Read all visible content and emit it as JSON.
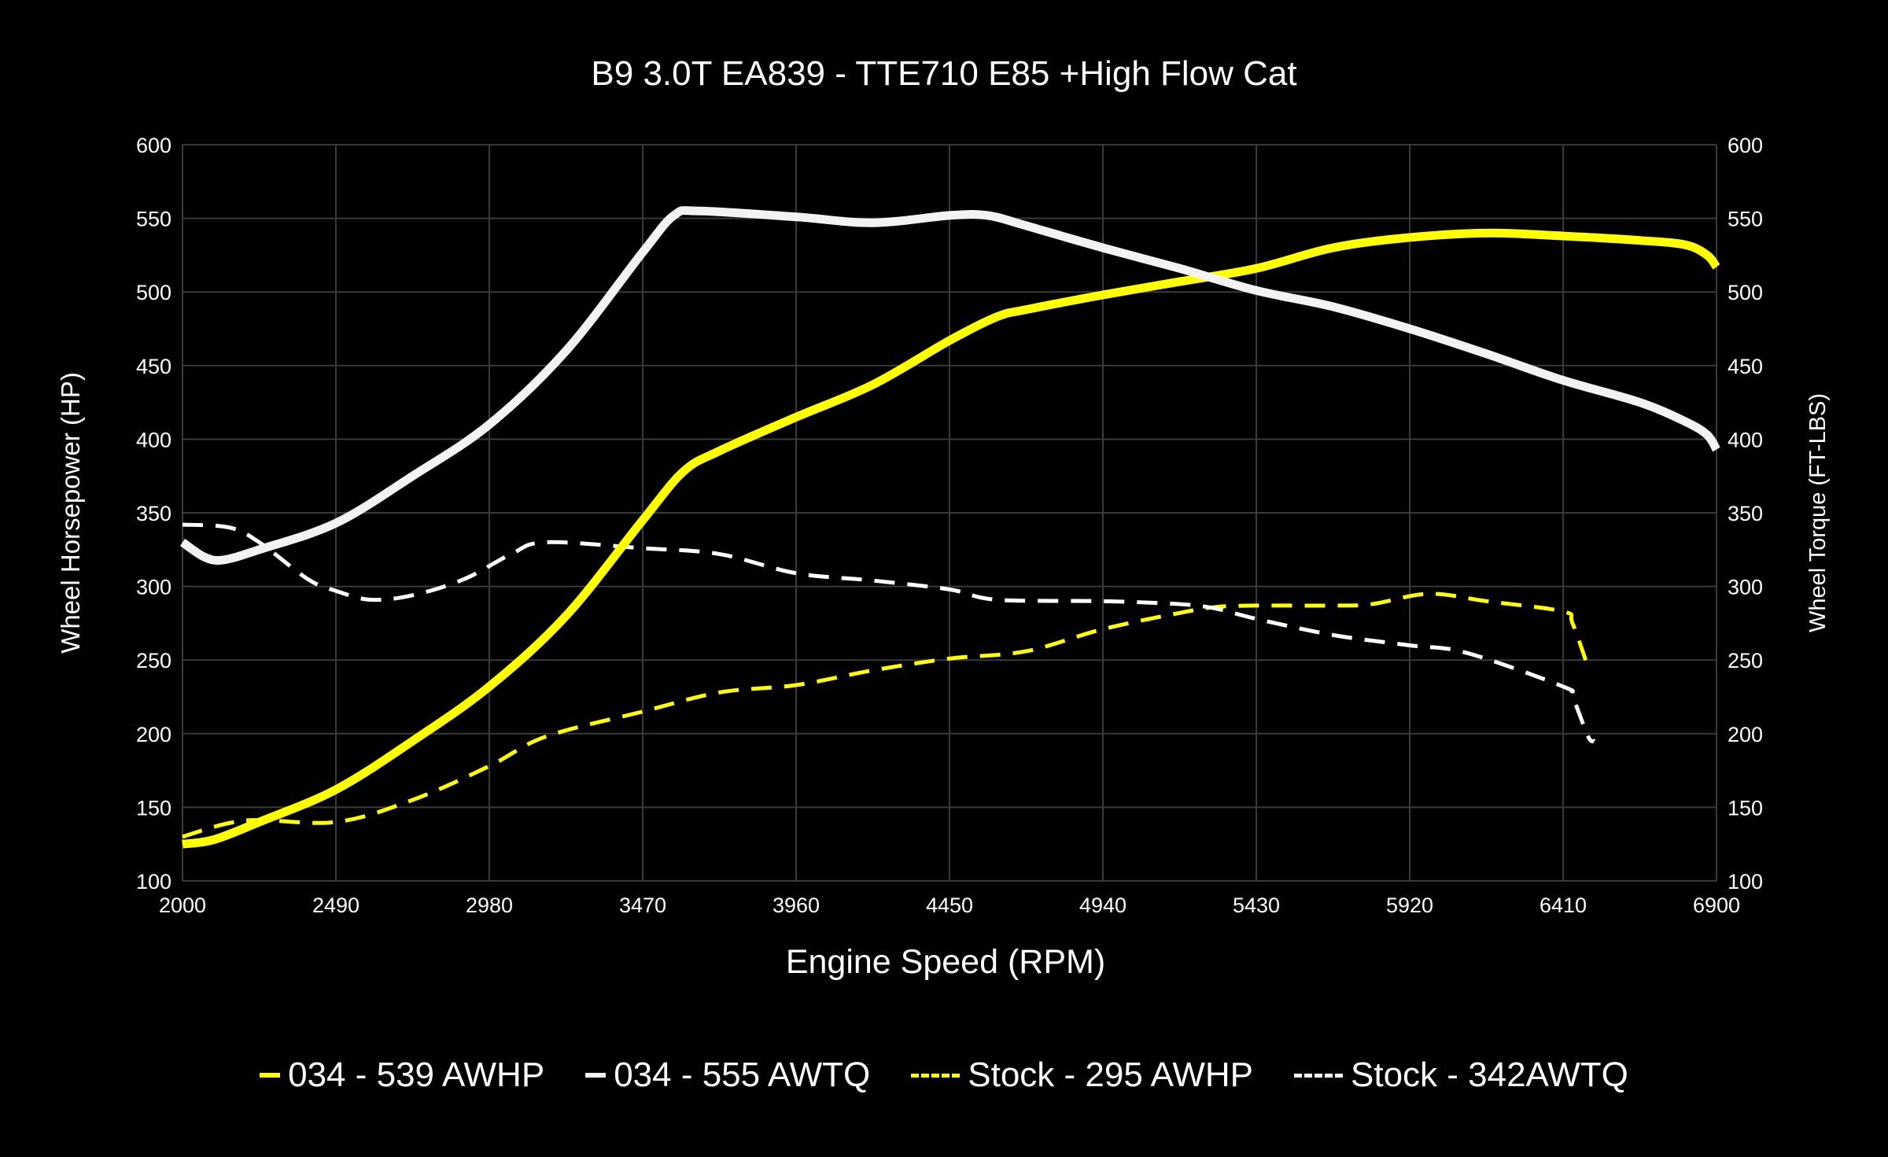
{
  "chart_data": {
    "type": "line",
    "title": "B9 3.0T EA839 - TTE710 E85 +High Flow Cat",
    "xlabel": "Engine Speed (RPM)",
    "ylabel": "Wheel Horsepower (HP)",
    "y2label": "Wheel Torque (FT-LBS)",
    "xlim": [
      2000,
      6900
    ],
    "ylim": [
      100,
      600
    ],
    "y2lim": [
      100,
      600
    ],
    "xticks": [
      "2000",
      "2490",
      "2980",
      "3470",
      "3960",
      "4450",
      "4940",
      "5430",
      "5920",
      "6410",
      "6900"
    ],
    "yticks": [
      "100",
      "150",
      "200",
      "250",
      "300",
      "350",
      "400",
      "450",
      "500",
      "550",
      "600"
    ],
    "grid": true,
    "legend_position": "bottom",
    "background": "#000000",
    "series": [
      {
        "name": "034 - 539 AWHP",
        "color": "#ffff00",
        "style": "solid",
        "axis": "left",
        "x": [
          2000,
          2100,
          2245,
          2490,
          2735,
          2980,
          3225,
          3470,
          3600,
          3715,
          3960,
          4205,
          4450,
          4600,
          4695,
          4940,
          5185,
          5430,
          5675,
          5920,
          6165,
          6410,
          6655,
          6800,
          6870,
          6900
        ],
        "y": [
          125,
          128,
          140,
          162,
          195,
          232,
          280,
          345,
          378,
          392,
          415,
          437,
          467,
          483,
          488,
          498,
          507,
          516,
          530,
          537,
          540,
          538,
          535,
          532,
          525,
          517
        ]
      },
      {
        "name": "034 - 555 AWTQ",
        "color": "#f2f2f2",
        "style": "solid",
        "axis": "right",
        "x": [
          2000,
          2070,
          2130,
          2245,
          2490,
          2735,
          2980,
          3225,
          3470,
          3570,
          3650,
          3960,
          4205,
          4450,
          4570,
          4695,
          4940,
          5185,
          5430,
          5675,
          5920,
          6165,
          6410,
          6655,
          6800,
          6870,
          6900
        ],
        "y": [
          330,
          320,
          318,
          325,
          343,
          375,
          410,
          460,
          527,
          552,
          555,
          551,
          547,
          552,
          552,
          545,
          530,
          516,
          501,
          490,
          475,
          458,
          440,
          425,
          412,
          403,
          393
        ]
      },
      {
        "name": "Stock - 295 AWHP",
        "color": "#ffff00",
        "style": "dashed",
        "axis": "left",
        "x": [
          2000,
          2200,
          2490,
          2735,
          2980,
          3160,
          3470,
          3715,
          3960,
          4205,
          4450,
          4695,
          4940,
          5185,
          5300,
          5430,
          5675,
          5800,
          5980,
          6165,
          6410,
          6440,
          6490
        ],
        "y": [
          130,
          141,
          140,
          155,
          178,
          198,
          215,
          228,
          233,
          243,
          251,
          256,
          271,
          282,
          286,
          287,
          287,
          288,
          295,
          290,
          283,
          275,
          245
        ]
      },
      {
        "name": "Stock - 342AWTQ",
        "color": "#ffffff",
        "style": "dashed",
        "axis": "right",
        "x": [
          2000,
          2150,
          2245,
          2400,
          2490,
          2600,
          2735,
          2900,
          3050,
          3160,
          3470,
          3715,
          3960,
          4205,
          4450,
          4600,
          4940,
          5185,
          5300,
          5430,
          5675,
          5920,
          6100,
          6410,
          6440,
          6490,
          6510
        ],
        "y": [
          342,
          340,
          330,
          305,
          297,
          291,
          294,
          305,
          322,
          330,
          326,
          322,
          309,
          304,
          298,
          291,
          290,
          288,
          285,
          278,
          267,
          260,
          255,
          232,
          225,
          198,
          195
        ]
      }
    ]
  }
}
